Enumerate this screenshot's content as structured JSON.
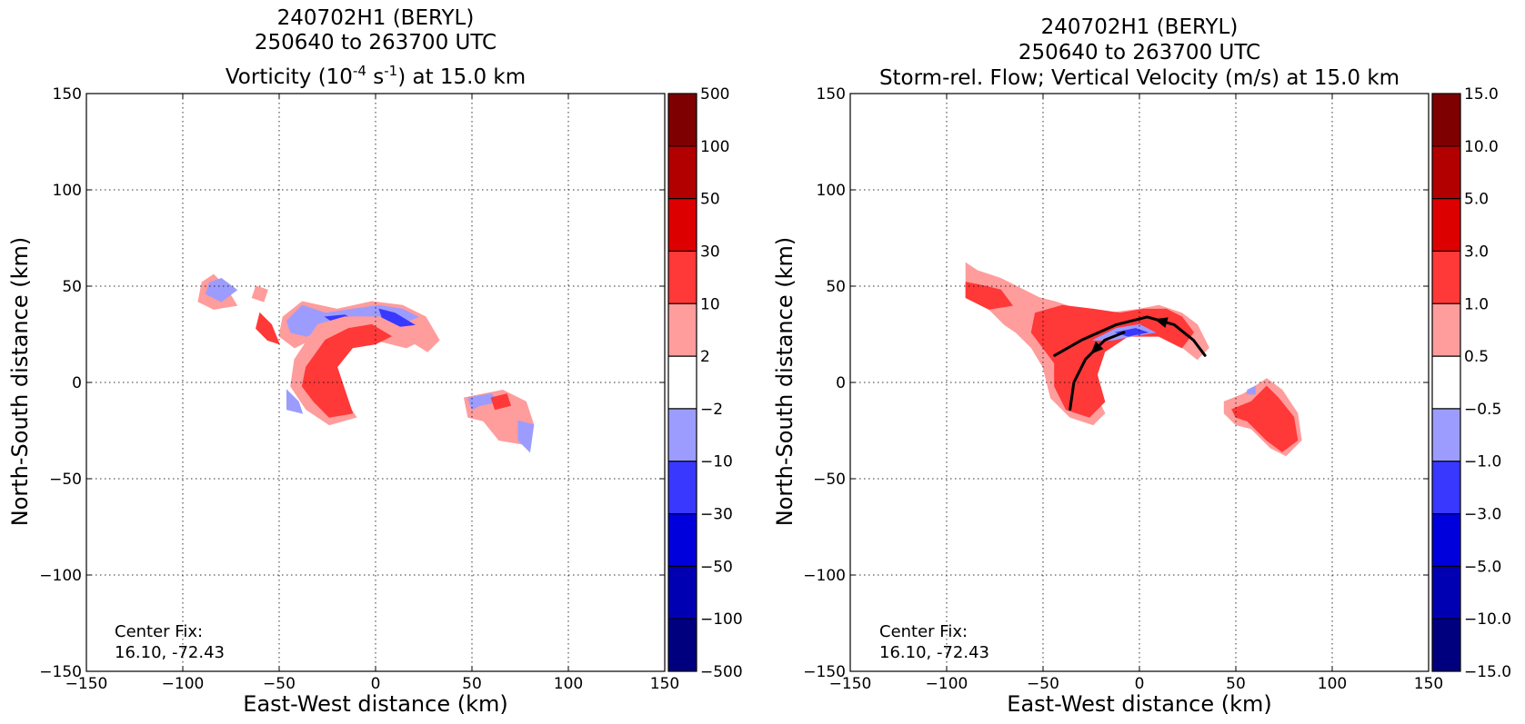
{
  "chart_data": [
    {
      "type": "contour",
      "title_lines": [
        "240702H1 (BERYL)",
        "250640 to 263700 UTC"
      ],
      "subtitle_prefix": "Vorticity (10",
      "subtitle_sup1": "-4",
      "subtitle_mid": " s",
      "subtitle_sup2": "-1",
      "subtitle_suffix": ") at 15.0 km",
      "xlabel": "East-West distance (km)",
      "ylabel": "North-South distance (km)",
      "xlim": [
        -150,
        150
      ],
      "ylim": [
        -150,
        150
      ],
      "xticks": [
        -150,
        -100,
        -50,
        0,
        50,
        100,
        150
      ],
      "yticks": [
        -150,
        -100,
        -50,
        0,
        50,
        100,
        150
      ],
      "xtick_labels": [
        "−150",
        "−100",
        "−50",
        "0",
        "50",
        "100",
        "150"
      ],
      "ytick_labels": [
        "−150",
        "−100",
        "−50",
        "0",
        "50",
        "100",
        "150"
      ],
      "grid": true,
      "annotation": [
        "Center Fix:",
        "16.10, -72.43"
      ],
      "colorbar": {
        "labels": [
          "500",
          "100",
          "50",
          "30",
          "10",
          "2",
          "−2",
          "−10",
          "−30",
          "−50",
          "−100",
          "−500"
        ],
        "colors": [
          "#7f0000",
          "#b20000",
          "#dd0000",
          "#ff3838",
          "#ff9c9c",
          "#ffffff",
          "#9c9cff",
          "#3838ff",
          "#0000dd",
          "#0000b2",
          "#00007f"
        ]
      },
      "regions": [
        {
          "level": "#ff9c9c",
          "points": [
            [
              -90,
              52
            ],
            [
              -84,
              56
            ],
            [
              -78,
              50
            ],
            [
              -72,
              40
            ],
            [
              -84,
              38
            ],
            [
              -92,
              42
            ]
          ]
        },
        {
          "level": "#9c9cff",
          "points": [
            [
              -86,
              52
            ],
            [
              -80,
              54
            ],
            [
              -72,
              48
            ],
            [
              -80,
              42
            ],
            [
              -88,
              46
            ]
          ]
        },
        {
          "level": "#ff9c9c",
          "points": [
            [
              -62,
              50
            ],
            [
              -56,
              48
            ],
            [
              -58,
              42
            ],
            [
              -64,
              44
            ]
          ]
        },
        {
          "level": "#ff3838",
          "points": [
            [
              -60,
              36
            ],
            [
              -54,
              30
            ],
            [
              -50,
              20
            ],
            [
              -56,
              22
            ],
            [
              -62,
              28
            ]
          ]
        },
        {
          "level": "#ff9c9c",
          "points": [
            [
              -48,
              34
            ],
            [
              -38,
              42
            ],
            [
              -20,
              38
            ],
            [
              -2,
              42
            ],
            [
              14,
              40
            ],
            [
              26,
              34
            ],
            [
              33,
              22
            ],
            [
              27,
              16
            ],
            [
              14,
              24
            ],
            [
              0,
              30
            ],
            [
              -16,
              28
            ],
            [
              -30,
              24
            ],
            [
              -42,
              18
            ],
            [
              -50,
              24
            ]
          ]
        },
        {
          "level": "#9c9cff",
          "points": [
            [
              -46,
              32
            ],
            [
              -38,
              40
            ],
            [
              -26,
              36
            ],
            [
              -12,
              38
            ],
            [
              2,
              40
            ],
            [
              14,
              38
            ],
            [
              22,
              34
            ],
            [
              12,
              30
            ],
            [
              -2,
              34
            ],
            [
              -14,
              32
            ],
            [
              -26,
              28
            ],
            [
              -36,
              24
            ],
            [
              -44,
              26
            ]
          ]
        },
        {
          "level": "#3838ff",
          "points": [
            [
              2,
              38
            ],
            [
              10,
              36
            ],
            [
              20,
              30
            ],
            [
              12,
              29
            ],
            [
              4,
              32
            ]
          ]
        },
        {
          "level": "#3838ff",
          "points": [
            [
              -26,
              34
            ],
            [
              -16,
              35
            ],
            [
              -10,
              32
            ],
            [
              -20,
              30
            ]
          ]
        },
        {
          "level": "#ff9c9c",
          "points": [
            [
              -42,
              12
            ],
            [
              -30,
              30
            ],
            [
              -16,
              34
            ],
            [
              2,
              34
            ],
            [
              14,
              28
            ],
            [
              24,
              22
            ],
            [
              16,
              18
            ],
            [
              0,
              22
            ],
            [
              -14,
              22
            ],
            [
              -22,
              12
            ],
            [
              -18,
              -6
            ],
            [
              -10,
              -18
            ],
            [
              -24,
              -22
            ],
            [
              -36,
              -14
            ],
            [
              -44,
              -2
            ]
          ]
        },
        {
          "level": "#ff3838",
          "points": [
            [
              -36,
              8
            ],
            [
              -26,
              22
            ],
            [
              -14,
              28
            ],
            [
              -2,
              30
            ],
            [
              8,
              24
            ],
            [
              0,
              20
            ],
            [
              -12,
              18
            ],
            [
              -20,
              8
            ],
            [
              -16,
              -4
            ],
            [
              -12,
              -16
            ],
            [
              -24,
              -18
            ],
            [
              -32,
              -10
            ],
            [
              -38,
              -2
            ]
          ]
        },
        {
          "level": "#9c9cff",
          "points": [
            [
              -46,
              -4
            ],
            [
              -40,
              -10
            ],
            [
              -38,
              -16
            ],
            [
              -46,
              -14
            ]
          ]
        },
        {
          "level": "#ff9c9c",
          "points": [
            [
              46,
              -8
            ],
            [
              56,
              -6
            ],
            [
              66,
              -4
            ],
            [
              78,
              -10
            ],
            [
              82,
              -22
            ],
            [
              76,
              -32
            ],
            [
              64,
              -30
            ],
            [
              56,
              -20
            ],
            [
              48,
              -18
            ]
          ]
        },
        {
          "level": "#9c9cff",
          "points": [
            [
              48,
              -8
            ],
            [
              60,
              -6
            ],
            [
              64,
              -10
            ],
            [
              54,
              -12
            ],
            [
              50,
              -14
            ]
          ]
        },
        {
          "level": "#9c9cff",
          "points": [
            [
              74,
              -20
            ],
            [
              82,
              -22
            ],
            [
              80,
              -36
            ],
            [
              74,
              -30
            ]
          ]
        },
        {
          "level": "#ff3838",
          "points": [
            [
              60,
              -8
            ],
            [
              68,
              -6
            ],
            [
              70,
              -12
            ],
            [
              62,
              -14
            ]
          ]
        }
      ]
    },
    {
      "type": "contour",
      "title_lines": [
        "240702H1 (BERYL)",
        "250640 to 263700 UTC"
      ],
      "subtitle": "Storm-rel. Flow; Vertical Velocity (m/s) at 15.0 km",
      "xlabel": "East-West distance (km)",
      "ylabel": "North-South distance (km)",
      "xlim": [
        -150,
        150
      ],
      "ylim": [
        -150,
        150
      ],
      "xticks": [
        -150,
        -100,
        -50,
        0,
        50,
        100,
        150
      ],
      "yticks": [
        -150,
        -100,
        -50,
        0,
        50,
        100,
        150
      ],
      "xtick_labels": [
        "−150",
        "−100",
        "−50",
        "0",
        "50",
        "100",
        "150"
      ],
      "ytick_labels": [
        "−150",
        "−100",
        "−50",
        "0",
        "50",
        "100",
        "150"
      ],
      "grid": true,
      "annotation": [
        "Center Fix:",
        "16.10, -72.43"
      ],
      "colorbar": {
        "labels": [
          "15.0",
          "10.0",
          "5.0",
          "3.0",
          "1.0",
          "0.5",
          "−0.5",
          "−1.0",
          "−3.0",
          "−5.0",
          "−10.0",
          "−15.0"
        ],
        "colors": [
          "#7f0000",
          "#b20000",
          "#dd0000",
          "#ff3838",
          "#ff9c9c",
          "#ffffff",
          "#9c9cff",
          "#3838ff",
          "#0000dd",
          "#0000b2",
          "#00007f"
        ]
      },
      "regions": [
        {
          "level": "#ff9c9c",
          "points": [
            [
              -90,
              62
            ],
            [
              -84,
              58
            ],
            [
              -72,
              54
            ],
            [
              -60,
              48
            ],
            [
              -52,
              44
            ],
            [
              -44,
              42
            ],
            [
              -32,
              38
            ],
            [
              -16,
              36
            ],
            [
              0,
              38
            ],
            [
              10,
              40
            ],
            [
              22,
              36
            ],
            [
              30,
              30
            ],
            [
              36,
              18
            ],
            [
              30,
              12
            ],
            [
              20,
              20
            ],
            [
              6,
              26
            ],
            [
              -8,
              26
            ],
            [
              -20,
              20
            ],
            [
              -26,
              10
            ],
            [
              -24,
              -4
            ],
            [
              -18,
              -16
            ],
            [
              -24,
              -22
            ],
            [
              -36,
              -18
            ],
            [
              -46,
              -8
            ],
            [
              -50,
              8
            ],
            [
              -56,
              18
            ],
            [
              -64,
              26
            ],
            [
              -70,
              30
            ],
            [
              -78,
              38
            ],
            [
              -90,
              44
            ]
          ]
        },
        {
          "level": "#ff3838",
          "points": [
            [
              -90,
              52
            ],
            [
              -80,
              50
            ],
            [
              -72,
              48
            ],
            [
              -66,
              40
            ],
            [
              -78,
              38
            ],
            [
              -90,
              44
            ]
          ]
        },
        {
          "level": "#ff3838",
          "points": [
            [
              -54,
              36
            ],
            [
              -40,
              40
            ],
            [
              -24,
              38
            ],
            [
              -10,
              36
            ],
            [
              2,
              38
            ],
            [
              14,
              38
            ],
            [
              22,
              34
            ],
            [
              28,
              26
            ],
            [
              22,
              18
            ],
            [
              10,
              24
            ],
            [
              -6,
              24
            ],
            [
              -18,
              16
            ],
            [
              -22,
              4
            ],
            [
              -18,
              -10
            ],
            [
              -26,
              -18
            ],
            [
              -38,
              -14
            ],
            [
              -44,
              -2
            ],
            [
              -44,
              10
            ],
            [
              -50,
              18
            ],
            [
              -56,
              26
            ]
          ]
        },
        {
          "level": "#9c9cff",
          "points": [
            [
              -24,
              22
            ],
            [
              -12,
              28
            ],
            [
              0,
              30
            ],
            [
              8,
              26
            ],
            [
              -4,
              24
            ],
            [
              -14,
              22
            ]
          ]
        },
        {
          "level": "#3838ff",
          "points": [
            [
              -12,
              26
            ],
            [
              -2,
              28
            ],
            [
              4,
              26
            ],
            [
              -6,
              24
            ]
          ]
        },
        {
          "level": "#ff9c9c",
          "points": [
            [
              44,
              -10
            ],
            [
              54,
              -6
            ],
            [
              66,
              2
            ],
            [
              74,
              -4
            ],
            [
              82,
              -16
            ],
            [
              84,
              -30
            ],
            [
              76,
              -38
            ],
            [
              68,
              -34
            ],
            [
              58,
              -24
            ],
            [
              50,
              -22
            ],
            [
              44,
              -16
            ]
          ]
        },
        {
          "level": "#ff3838",
          "points": [
            [
              48,
              -14
            ],
            [
              58,
              -10
            ],
            [
              66,
              -2
            ],
            [
              72,
              -8
            ],
            [
              80,
              -18
            ],
            [
              82,
              -30
            ],
            [
              74,
              -36
            ],
            [
              66,
              -30
            ],
            [
              56,
              -20
            ],
            [
              50,
              -18
            ]
          ]
        },
        {
          "level": "#9c9cff",
          "points": [
            [
              56,
              -4
            ],
            [
              60,
              -2
            ],
            [
              60,
              -6
            ],
            [
              56,
              -6
            ]
          ]
        }
      ],
      "streamlines": [
        {
          "points": [
            [
              -44,
              14
            ],
            [
              -30,
              22
            ],
            [
              -12,
              30
            ],
            [
              4,
              34
            ],
            [
              18,
              30
            ],
            [
              28,
              22
            ],
            [
              34,
              14
            ]
          ],
          "arrow_at": 4
        },
        {
          "points": [
            [
              -36,
              -14
            ],
            [
              -34,
              0
            ],
            [
              -28,
              12
            ],
            [
              -18,
              22
            ],
            [
              -8,
              26
            ]
          ],
          "arrow_at": 3
        }
      ]
    }
  ]
}
